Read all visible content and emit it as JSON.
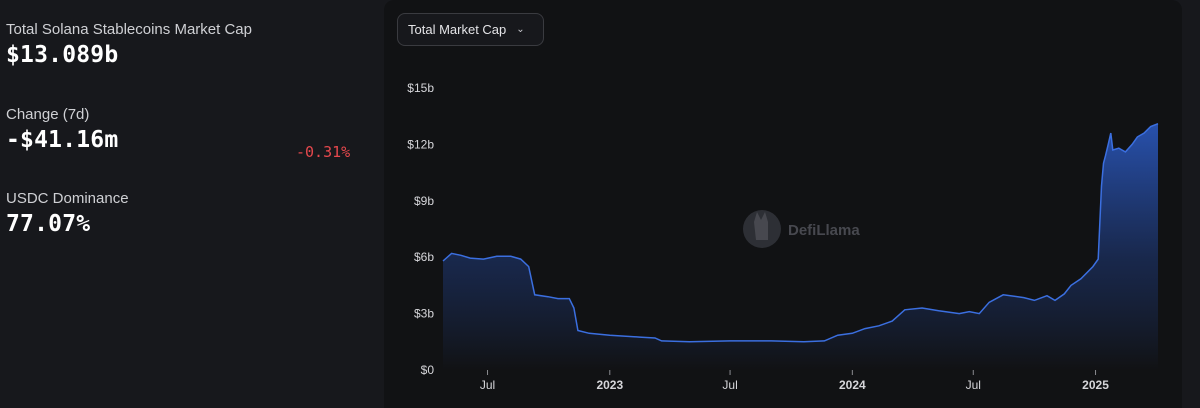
{
  "stats": {
    "total": {
      "label": "Total Solana Stablecoins Market Cap",
      "value": "$13.089b"
    },
    "change": {
      "label": "Change (7d)",
      "value": "-$41.16m",
      "percent": "-0.31%"
    },
    "dominance": {
      "label": "USDC Dominance",
      "value": "77.07%"
    }
  },
  "controls": {
    "selector_label": "Total Market Cap"
  },
  "watermark": {
    "text": "DefiLlama"
  },
  "colors": {
    "line": "#3b6fe0",
    "negative": "#e5484d",
    "background": "#111214"
  },
  "chart_data": {
    "type": "area",
    "ylabel": "",
    "xlabel": "",
    "ylim": [
      0,
      15
    ],
    "yunit": "b",
    "y_ticks": [
      "$0",
      "$3b",
      "$6b",
      "$9b",
      "$12b",
      "$15b"
    ],
    "y_tick_values": [
      0,
      3,
      6,
      9,
      12,
      15
    ],
    "x_ticks": [
      {
        "label": "Jul",
        "date": "2022-07-01",
        "bold": false
      },
      {
        "label": "2023",
        "date": "2023-01-01",
        "bold": true
      },
      {
        "label": "Jul",
        "date": "2023-07-01",
        "bold": false
      },
      {
        "label": "2024",
        "date": "2024-01-01",
        "bold": true
      },
      {
        "label": "Jul",
        "date": "2024-07-01",
        "bold": false
      },
      {
        "label": "2025",
        "date": "2025-01-01",
        "bold": true
      }
    ],
    "xlim": [
      "2022-04-25",
      "2025-04-05"
    ],
    "grid": false,
    "series": [
      {
        "points": [
          [
            "2022-04-25",
            5.8
          ],
          [
            "2022-05-08",
            6.2
          ],
          [
            "2022-05-22",
            6.1
          ],
          [
            "2022-06-05",
            5.95
          ],
          [
            "2022-06-25",
            5.9
          ],
          [
            "2022-07-15",
            6.05
          ],
          [
            "2022-08-05",
            6.05
          ],
          [
            "2022-08-20",
            5.9
          ],
          [
            "2022-09-01",
            5.5
          ],
          [
            "2022-09-10",
            4.0
          ],
          [
            "2022-09-30",
            3.9
          ],
          [
            "2022-10-15",
            3.8
          ],
          [
            "2022-11-01",
            3.8
          ],
          [
            "2022-11-08",
            3.3
          ],
          [
            "2022-11-14",
            2.1
          ],
          [
            "2022-12-01",
            1.95
          ],
          [
            "2023-01-01",
            1.85
          ],
          [
            "2023-02-15",
            1.75
          ],
          [
            "2023-03-10",
            1.7
          ],
          [
            "2023-03-20",
            1.55
          ],
          [
            "2023-05-01",
            1.5
          ],
          [
            "2023-07-01",
            1.55
          ],
          [
            "2023-09-01",
            1.55
          ],
          [
            "2023-10-20",
            1.5
          ],
          [
            "2023-11-20",
            1.55
          ],
          [
            "2023-12-10",
            1.85
          ],
          [
            "2024-01-01",
            1.95
          ],
          [
            "2024-01-20",
            2.2
          ],
          [
            "2024-02-10",
            2.35
          ],
          [
            "2024-03-01",
            2.6
          ],
          [
            "2024-03-20",
            3.2
          ],
          [
            "2024-04-15",
            3.3
          ],
          [
            "2024-05-10",
            3.15
          ],
          [
            "2024-06-10",
            3.0
          ],
          [
            "2024-06-25",
            3.1
          ],
          [
            "2024-07-10",
            3.0
          ],
          [
            "2024-07-25",
            3.6
          ],
          [
            "2024-08-15",
            4.0
          ],
          [
            "2024-09-15",
            3.85
          ],
          [
            "2024-10-01",
            3.7
          ],
          [
            "2024-10-20",
            3.95
          ],
          [
            "2024-11-01",
            3.7
          ],
          [
            "2024-11-15",
            4.05
          ],
          [
            "2024-11-25",
            4.5
          ],
          [
            "2024-12-10",
            4.85
          ],
          [
            "2024-12-28",
            5.5
          ],
          [
            "2025-01-05",
            5.9
          ],
          [
            "2025-01-10",
            9.8
          ],
          [
            "2025-01-13",
            11.0
          ],
          [
            "2025-01-16",
            11.4
          ],
          [
            "2025-01-20",
            12.0
          ],
          [
            "2025-01-24",
            12.6
          ],
          [
            "2025-01-27",
            11.7
          ],
          [
            "2025-02-05",
            11.8
          ],
          [
            "2025-02-15",
            11.6
          ],
          [
            "2025-02-25",
            12.0
          ],
          [
            "2025-03-05",
            12.4
          ],
          [
            "2025-03-15",
            12.6
          ],
          [
            "2025-03-25",
            12.95
          ],
          [
            "2025-04-05",
            13.1
          ]
        ]
      }
    ]
  }
}
